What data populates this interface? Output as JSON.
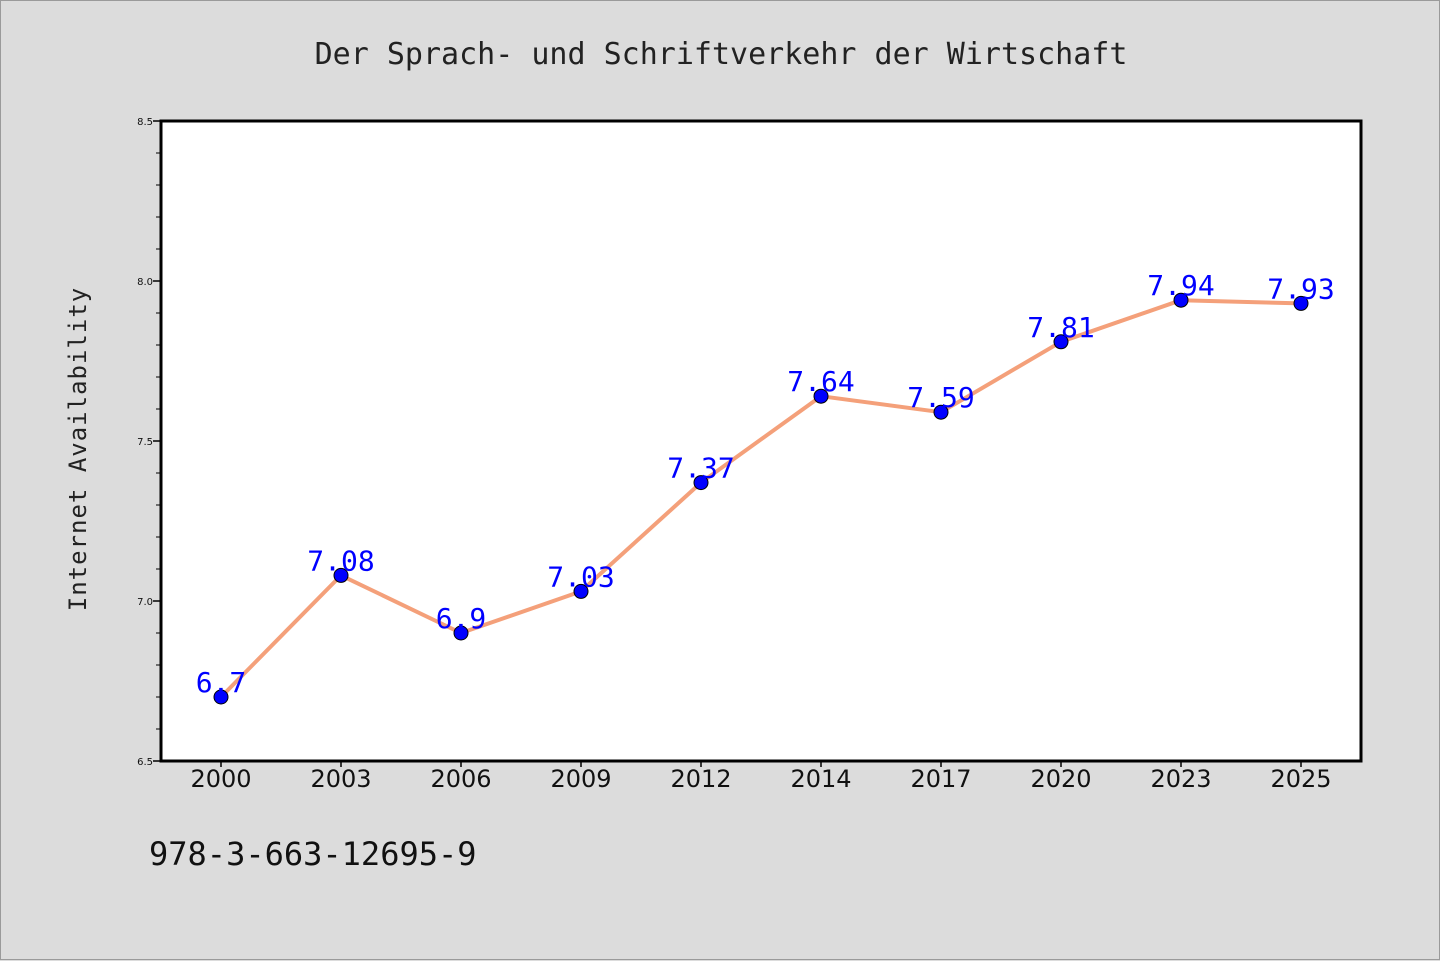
{
  "chart_data": {
    "type": "line",
    "title": "Der Sprach- und Schriftverkehr der Wirtschaft",
    "xlabel": "",
    "ylabel": "Internet Availability",
    "categories": [
      "2000",
      "2003",
      "2006",
      "2009",
      "2012",
      "2014",
      "2017",
      "2020",
      "2023",
      "2025"
    ],
    "series": [
      {
        "values": [
          6.7,
          7.08,
          6.9,
          7.03,
          7.37,
          7.64,
          7.59,
          7.81,
          7.94,
          7.93
        ],
        "labels": [
          "6.7",
          "7.08",
          "6.9",
          "7.03",
          "7.37",
          "7.64",
          "7.59",
          "7.81",
          "7.94",
          "7.93"
        ],
        "line_color": "#f4a07a",
        "marker_color": "#0000ff",
        "label_color": "#0000ff"
      }
    ],
    "ylim": [
      6.5,
      8.5
    ],
    "yticks": [
      "6.5",
      "7.0",
      "7.5",
      "8.0",
      "8.5"
    ],
    "yticks_values": [
      6.5,
      7.0,
      7.5,
      8.0,
      8.5
    ],
    "grid": false
  },
  "footer": {
    "isbn": "978-3-663-12695-9"
  },
  "colors": {
    "background": "#dcdcdc",
    "plot_background": "#ffffff",
    "axes": "#000000"
  }
}
